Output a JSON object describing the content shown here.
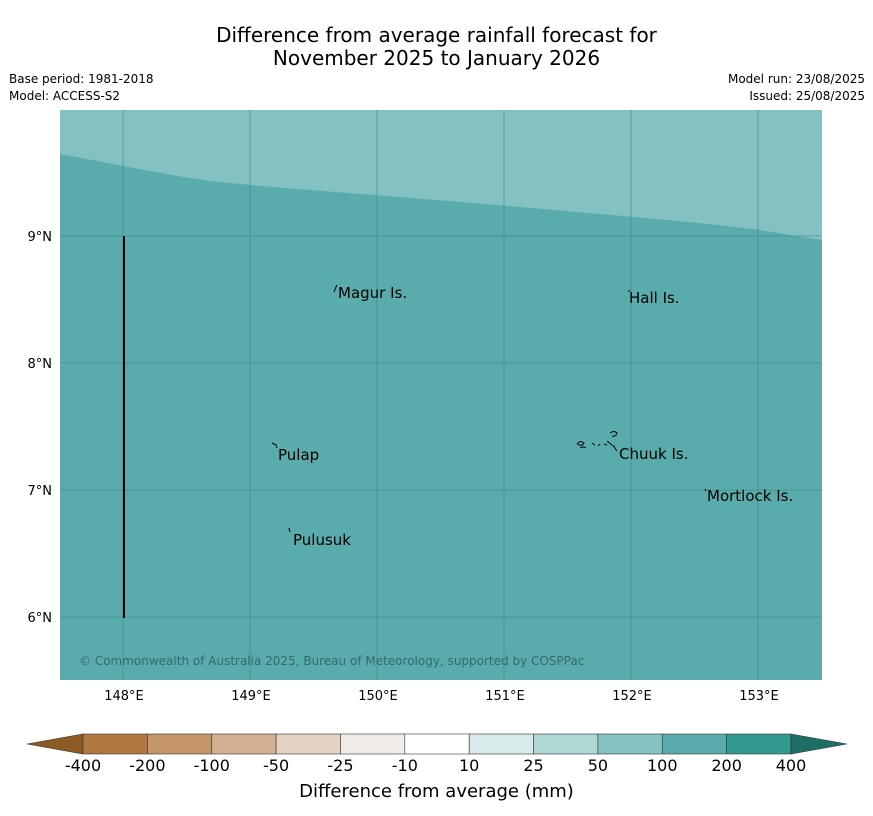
{
  "title": {
    "line1": "Difference from average rainfall forecast for",
    "line2": "November 2025 to January 2026"
  },
  "meta_left": {
    "base_period": "Base period: 1981-2018",
    "model": "Model: ACCESS-S2"
  },
  "meta_right": {
    "model_run": "Model run: 23/08/2025",
    "issued": "Issued: 25/08/2025"
  },
  "map": {
    "lat_labels": [
      "9°N",
      "8°N",
      "7°N",
      "6°N"
    ],
    "lon_labels": [
      "148°E",
      "149°E",
      "150°E",
      "151°E",
      "152°E",
      "153°E"
    ],
    "places": [
      "Magur Is.",
      "Hall Is.",
      "Pulap",
      "Chuuk Is.",
      "Mortlock Is.",
      "Pulusuk"
    ],
    "copyright": "© Commonwealth of Australia 2025, Bureau of Meteorology, supported by COSPPac",
    "colors": {
      "upper_band": "#84c1c1",
      "main": "#5aabab",
      "grid": "#3f8a8a"
    }
  },
  "colorbar": {
    "labels": [
      "-400",
      "-200",
      "-100",
      "-50",
      "-25",
      "-10",
      "10",
      "25",
      "50",
      "100",
      "200",
      "400"
    ],
    "colors": [
      "#8c5a24",
      "#b07840",
      "#c4956a",
      "#d3b091",
      "#e4d3c2",
      "#f0ebe6",
      "#ffffff",
      "#d8eaea",
      "#b0d6d6",
      "#84c1c1",
      "#5aabab",
      "#34998f",
      "#1e6e67"
    ],
    "title": "Difference from average (mm)"
  }
}
